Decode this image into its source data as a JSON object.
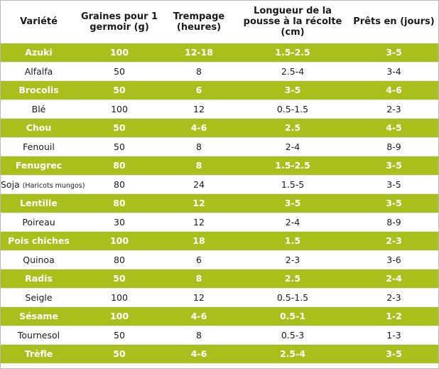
{
  "table": {
    "headers": [
      "Variété",
      "Graines pour 1 germoir (g)",
      "Trempage (heures)",
      "Longueur de la pousse à la récolte (cm)",
      "Prêts en (jours)"
    ],
    "rows": [
      {
        "variety": "Azuki",
        "note": "",
        "seeds": "100",
        "soak": "12-18",
        "length": "1.5-2.5",
        "ready": "3-5"
      },
      {
        "variety": "Alfalfa",
        "note": "",
        "seeds": "50",
        "soak": "8",
        "length": "2.5-4",
        "ready": "3-4"
      },
      {
        "variety": "Brocolis",
        "note": "",
        "seeds": "50",
        "soak": "6",
        "length": "3-5",
        "ready": "4-6"
      },
      {
        "variety": "Blé",
        "note": "",
        "seeds": "100",
        "soak": "12",
        "length": "0.5-1.5",
        "ready": "2-3"
      },
      {
        "variety": "Chou",
        "note": "",
        "seeds": "50",
        "soak": "4-6",
        "length": "2.5",
        "ready": "4-5"
      },
      {
        "variety": "Fenouil",
        "note": "",
        "seeds": "50",
        "soak": "8",
        "length": "2-4",
        "ready": "8-9"
      },
      {
        "variety": "Fenugrec",
        "note": "",
        "seeds": "80",
        "soak": "8",
        "length": "1.5-2.5",
        "ready": "3-5"
      },
      {
        "variety": "Soja",
        "note": "(Haricots mungos)",
        "seeds": "80",
        "soak": "24",
        "length": "1.5-5",
        "ready": "3-5"
      },
      {
        "variety": "Lentille",
        "note": "",
        "seeds": "80",
        "soak": "12",
        "length": "3-5",
        "ready": "3-5"
      },
      {
        "variety": "Poireau",
        "note": "",
        "seeds": "30",
        "soak": "12",
        "length": "2-4",
        "ready": "8-9"
      },
      {
        "variety": "Pois chiches",
        "note": "",
        "seeds": "100",
        "soak": "18",
        "length": "1.5",
        "ready": "2-3"
      },
      {
        "variety": "Quinoa",
        "note": "",
        "seeds": "80",
        "soak": "6",
        "length": "2-3",
        "ready": "3-6"
      },
      {
        "variety": "Radis",
        "note": "",
        "seeds": "50",
        "soak": "8",
        "length": "2.5",
        "ready": "2-4"
      },
      {
        "variety": "Seigle",
        "note": "",
        "seeds": "100",
        "soak": "12",
        "length": "0.5-1.5",
        "ready": "2-3"
      },
      {
        "variety": "Sésame",
        "note": "",
        "seeds": "100",
        "soak": "4-6",
        "length": "0.5-1",
        "ready": "1-2"
      },
      {
        "variety": "Tournesol",
        "note": "",
        "seeds": "50",
        "soak": "8",
        "length": "0.5-3",
        "ready": "1-3"
      },
      {
        "variety": "Trèfle",
        "note": "",
        "seeds": "50",
        "soak": "4-6",
        "length": "2.5-4",
        "ready": "3-5"
      }
    ]
  },
  "colors": {
    "highlight_row": "#a8bf1c",
    "highlight_text": "#ffffff",
    "plain_row": "#ffffff",
    "text": "#1a1a1a"
  }
}
